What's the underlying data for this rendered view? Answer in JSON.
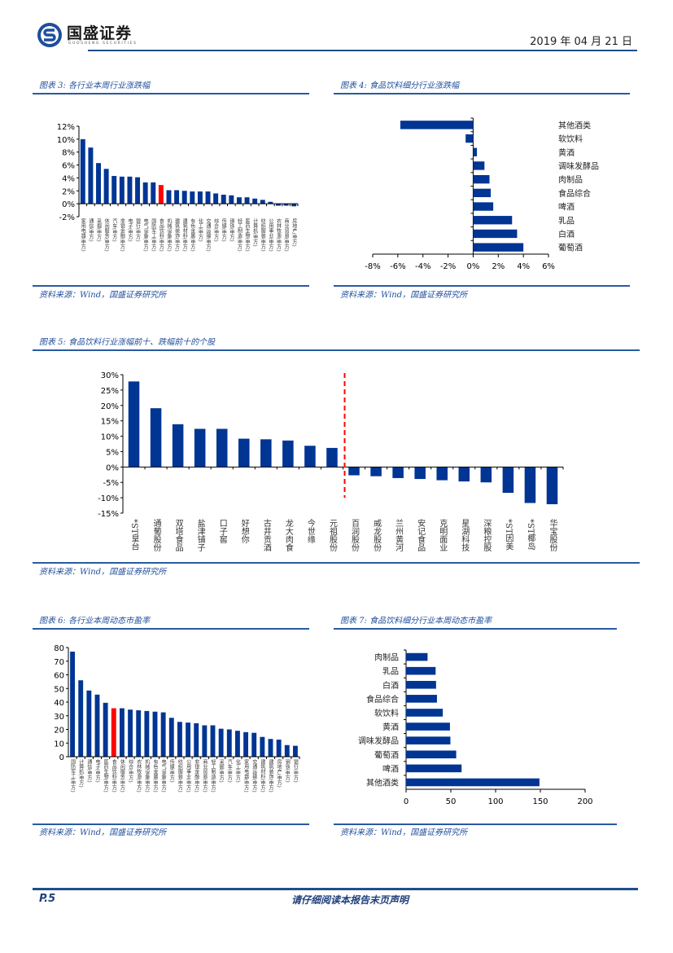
{
  "header": {
    "logo_name": "国盛证券",
    "logo_sub": "GUOSHENG SECURITIES",
    "date": "2019 年 04 月 21 日"
  },
  "colors": {
    "bar": "#003594",
    "highlight": "#ff0000",
    "accent": "#1f4e9c",
    "divider": "#ff0000"
  },
  "figures": {
    "fig3": {
      "title": "图表 3:  各行业本周行业涨跌幅",
      "source": "资料来源：Wind，国盛证券研究所"
    },
    "fig4": {
      "title": "图表 4:  食品饮料细分行业涨跌幅",
      "source": "资料来源：Wind，国盛证券研究所"
    },
    "fig5": {
      "title": "图表 5:  食品饮料行业涨幅前十、跌幅前十的个股",
      "source": "资料来源：Wind，国盛证券研究所"
    },
    "fig6": {
      "title": "图表 6:  各行业本周动态市盈率",
      "source": "资料来源：Wind，国盛证券研究所"
    },
    "fig7": {
      "title": "图表 7:  食品饮料细分行业本周动态市盈率",
      "source": "资料来源：Wind，国盛证券研究所"
    }
  },
  "footer": {
    "page": "P.5",
    "note": "请仔细阅读本报告末页声明"
  },
  "chart_data": [
    {
      "id": "fig3",
      "type": "bar",
      "title": "各行业本周行业涨跌幅",
      "unit": "%",
      "ylim": [
        -2,
        12
      ],
      "yticks": [
        -2,
        0,
        2,
        4,
        6,
        8,
        10,
        12
      ],
      "highlight": "食品饮料(申万)",
      "categories": [
        "家用电器(申万)",
        "通信(申万)",
        "采掘(申万)",
        "休闲服务(申万)",
        "汽车(申万)",
        "非银金融(申万)",
        "电子(申万)",
        "银行(申万)",
        "电气设备(申万)",
        "国防军工(申万)",
        "食品饮料(申万)",
        "机械设备(申万)",
        "建筑装饰(申万)",
        "建筑材料(申万)",
        "有色金属(申万)",
        "化工(申万)",
        "交通运输(申万)",
        "综合(申万)",
        "传媒(申万)",
        "钢铁(申万)",
        "轻工制造(申万)",
        "医药生物(申万)",
        "计算机(申万)",
        "纺织服装(申万)",
        "公用事业(申万)",
        "农林牧渔(申万)",
        "商业贸易(申万)",
        "房地产(申万)"
      ],
      "values": [
        10.0,
        8.7,
        6.3,
        5.4,
        4.3,
        4.2,
        4.2,
        4.1,
        3.3,
        3.3,
        2.9,
        2.1,
        2.1,
        2.0,
        1.9,
        1.9,
        1.9,
        1.6,
        1.4,
        1.3,
        1.0,
        1.0,
        0.8,
        0.6,
        0.3,
        -0.3,
        -0.3,
        -0.4
      ]
    },
    {
      "id": "fig4",
      "type": "bar",
      "orientation": "horizontal",
      "title": "食品饮料细分行业涨跌幅",
      "unit": "%",
      "xlim": [
        -8,
        6
      ],
      "xticks": [
        -8,
        -6,
        -4,
        -2,
        0,
        2,
        4,
        6
      ],
      "categories": [
        "其他酒类",
        "软饮料",
        "黄酒",
        "调味发酵品",
        "肉制品",
        "食品综合",
        "啤酒",
        "乳品",
        "白酒",
        "葡萄酒"
      ],
      "values": [
        -5.8,
        -0.6,
        0.3,
        0.9,
        1.3,
        1.4,
        1.6,
        3.1,
        3.5,
        4.0
      ]
    },
    {
      "id": "fig5",
      "type": "bar",
      "title": "食品饮料行业涨幅前十、跌幅前十的个股",
      "unit": "%",
      "ylim": [
        -15,
        30
      ],
      "yticks": [
        -15,
        -10,
        -5,
        0,
        5,
        10,
        15,
        20,
        25,
        30
      ],
      "annotations": [
        "red dashed divider between top-10 gainers and top-10 losers"
      ],
      "categories": [
        "*ST皇台",
        "通葡股份",
        "双塔食品",
        "盐津铺子",
        "口子窖",
        "好想你",
        "古井贡酒",
        "龙大肉食",
        "今世缘",
        "元祖股份",
        "百润股份",
        "威龙股份",
        "兰州黄河",
        "安记食品",
        "克明面业",
        "星湖科技",
        "深粮控股",
        "*ST因美",
        "*ST椰岛",
        "华宝股份"
      ],
      "values": [
        27.8,
        19.1,
        13.9,
        12.4,
        12.4,
        9.2,
        9.0,
        8.6,
        6.9,
        6.2,
        -2.7,
        -3.0,
        -3.6,
        -3.9,
        -4.3,
        -4.7,
        -5.0,
        -8.4,
        -11.7,
        -12.1
      ]
    },
    {
      "id": "fig6",
      "type": "bar",
      "title": "各行业本周动态市盈率",
      "ylim": [
        0,
        80
      ],
      "yticks": [
        0,
        10,
        20,
        30,
        40,
        50,
        60,
        70,
        80
      ],
      "highlight": "食品饮料(申万)",
      "categories": [
        "国防军工(申万)",
        "计算机(申万)",
        "通信(申万)",
        "电子(申万)",
        "医药生物(申万)",
        "食品饮料(申万)",
        "休闲服务(申万)",
        "综合(申万)",
        "农林牧渔(申万)",
        "机械设备(申万)",
        "有色金属(申万)",
        "电气设备(申万)",
        "传媒(申万)",
        "纺织服装(申万)",
        "公用事业(申万)",
        "非银金融(申万)",
        "商业贸易(申万)",
        "轻工制造(申万)",
        "采掘(申万)",
        "汽车(申万)",
        "化工(申万)",
        "家用电器(申万)",
        "交通运输(申万)",
        "建筑材料(申万)",
        "建筑装饰(申万)",
        "房地产(申万)",
        "钢铁(申万)",
        "银行(申万)"
      ],
      "values": [
        77,
        56,
        48.5,
        45.5,
        39.5,
        35.5,
        35.5,
        34.5,
        34,
        33.5,
        33,
        32.5,
        28.5,
        25.5,
        25,
        24.5,
        23,
        23,
        20.5,
        20,
        19,
        18,
        17.5,
        14.5,
        13,
        12.5,
        8.5,
        8
      ]
    },
    {
      "id": "fig7",
      "type": "bar",
      "orientation": "horizontal",
      "title": "食品饮料细分行业本周动态市盈率",
      "xlim": [
        0,
        200
      ],
      "xticks": [
        0,
        50,
        100,
        150,
        200
      ],
      "categories": [
        "肉制品",
        "乳品",
        "白酒",
        "食品综合",
        "软饮料",
        "黄酒",
        "调味发酵品",
        "葡萄酒",
        "啤酒",
        "其他酒类"
      ],
      "values": [
        24,
        33,
        33.5,
        34.5,
        41,
        49,
        49.5,
        56,
        62,
        149
      ]
    }
  ]
}
